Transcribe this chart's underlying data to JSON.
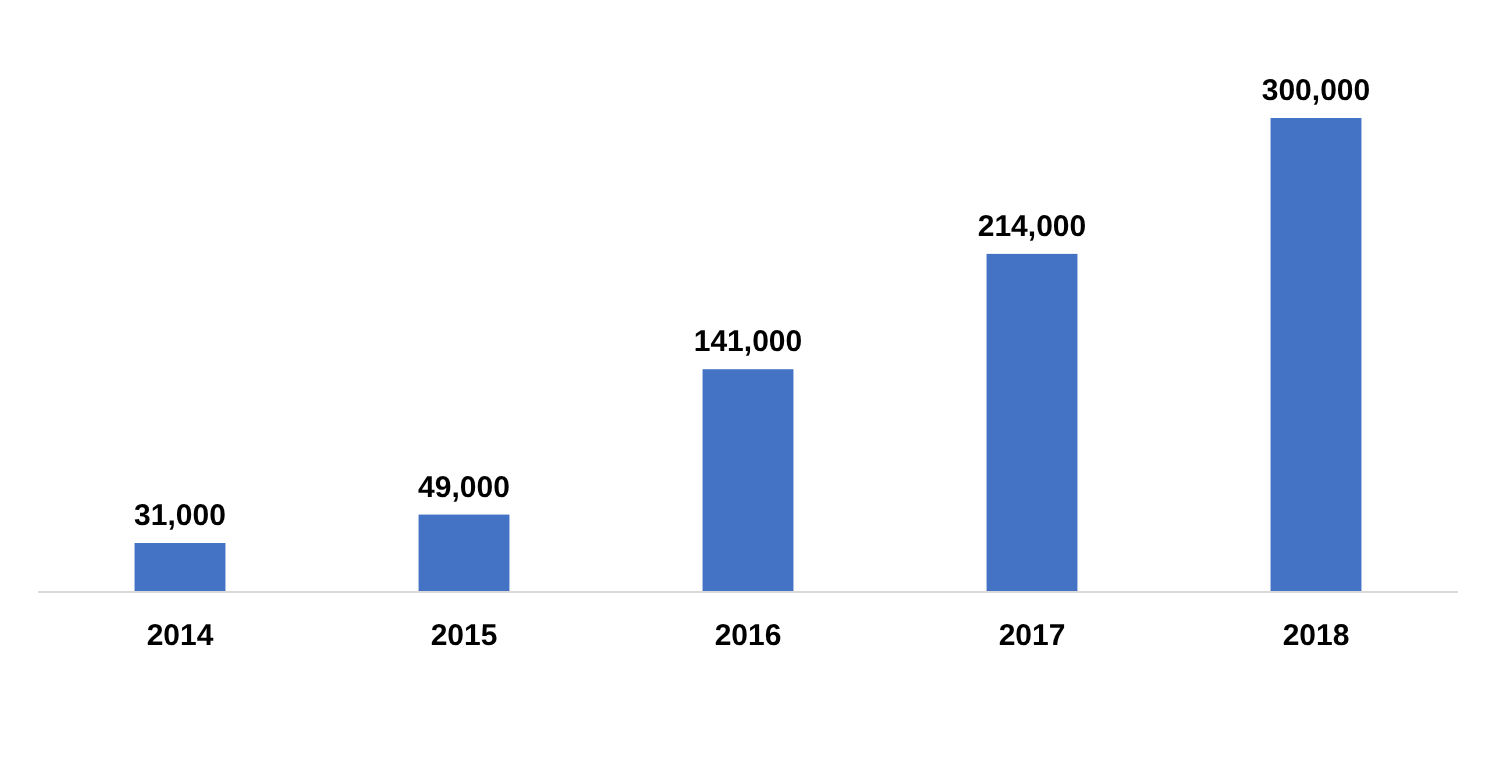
{
  "chart_data": {
    "type": "bar",
    "categories": [
      "2014",
      "2015",
      "2016",
      "2017",
      "2018"
    ],
    "values": [
      31000,
      49000,
      141000,
      214000,
      300000
    ],
    "color": "#4472c4",
    "data_labels": true,
    "value_labels": [
      "31,000",
      "49,000",
      "141,000",
      "214,000",
      "300,000"
    ]
  }
}
